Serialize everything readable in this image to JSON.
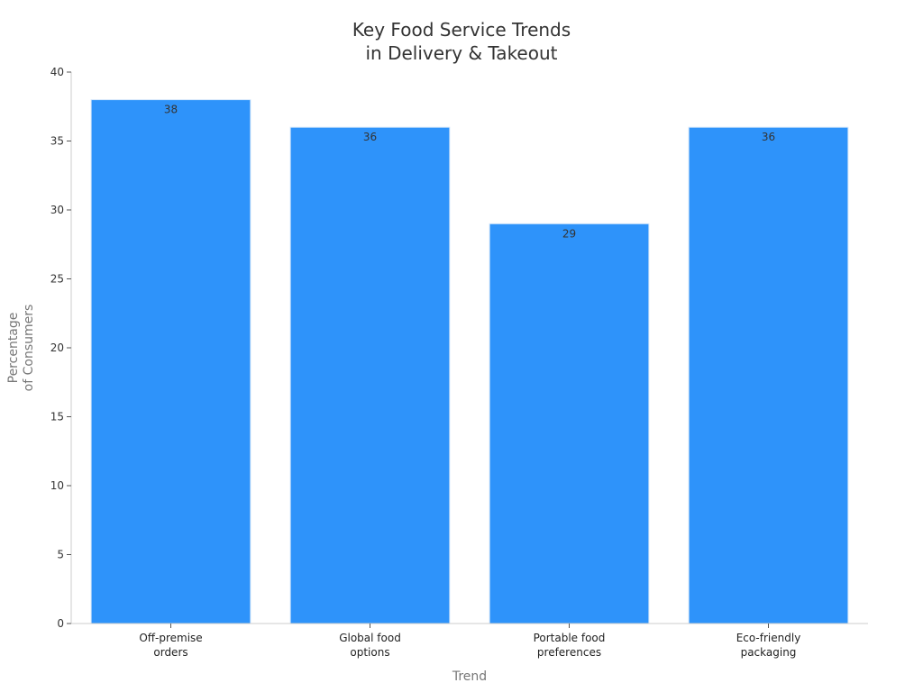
{
  "chart_data": {
    "type": "bar",
    "title_lines": [
      "Key Food Service Trends",
      "in Delivery & Takeout"
    ],
    "xlabel": "Trend",
    "ylabel_lines": [
      "Percentage",
      "of Consumers"
    ],
    "categories": [
      [
        "Off-premise",
        "orders"
      ],
      [
        "Global food",
        "options"
      ],
      [
        "Portable food",
        "preferences"
      ],
      [
        "Eco-friendly",
        "packaging"
      ]
    ],
    "values": [
      38,
      36,
      29,
      36
    ],
    "ylim": [
      0,
      40
    ],
    "yticks": [
      0,
      5,
      10,
      15,
      20,
      25,
      30,
      35,
      40
    ],
    "grid": false,
    "bar_color": "#2E93FA",
    "data_labels": true
  }
}
